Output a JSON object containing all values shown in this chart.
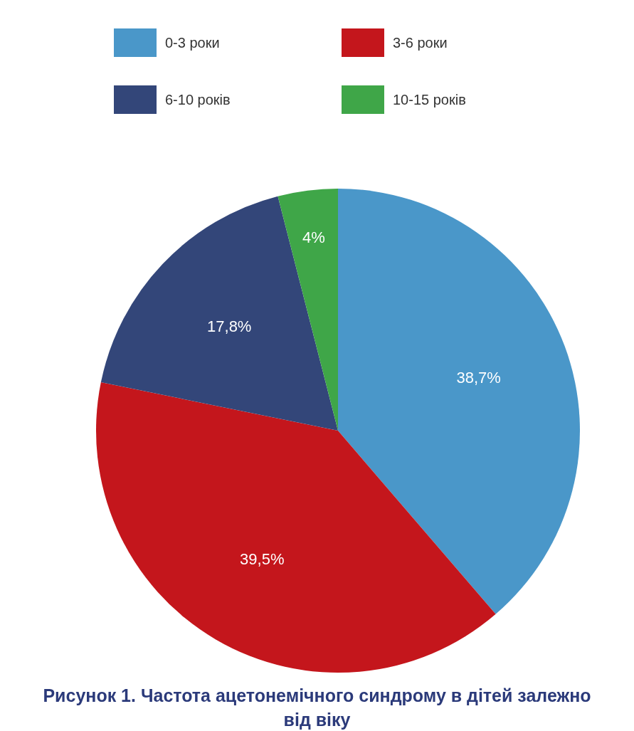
{
  "chart_data": {
    "type": "pie",
    "title": "Рисунок 1. Частота ацетонемічного синдрому в дітей залежно від віку",
    "categories": [
      "0-3 роки",
      "3-6 роки",
      "6-10 років",
      "10-15 років"
    ],
    "values": [
      38.7,
      39.5,
      17.8,
      4
    ],
    "colors": [
      "#4a97c9",
      "#c4161c",
      "#334679",
      "#3fa648"
    ],
    "value_labels": [
      "38,7%",
      "39,5%",
      "17,8%",
      "4%"
    ],
    "legend": "top"
  }
}
